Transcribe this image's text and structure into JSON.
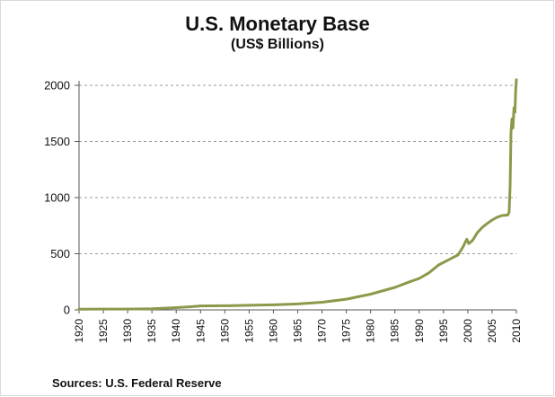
{
  "chart_data": {
    "type": "line",
    "title": "U.S. Monetary Base",
    "subtitle": "(US$ Billions)",
    "source": "Sources: U.S. Federal Reserve",
    "xlim": [
      1920,
      2010
    ],
    "ylim": [
      0,
      2000
    ],
    "x_ticks": [
      "1920",
      "1925",
      "1930",
      "1935",
      "1940",
      "1945",
      "1950",
      "1955",
      "1960",
      "1965",
      "1970",
      "1975",
      "1980",
      "1985",
      "1990",
      "1995",
      "2000",
      "2005",
      "2010"
    ],
    "y_ticks": [
      "0",
      "500",
      "1000",
      "1500",
      "2000"
    ],
    "grid": "horizontal dashed",
    "series": [
      {
        "color": "#8a9a4b",
        "points": [
          [
            1920,
            6
          ],
          [
            1925,
            7
          ],
          [
            1930,
            7
          ],
          [
            1935,
            10
          ],
          [
            1940,
            20
          ],
          [
            1943,
            28
          ],
          [
            1945,
            35
          ],
          [
            1950,
            37
          ],
          [
            1955,
            41
          ],
          [
            1960,
            45
          ],
          [
            1965,
            53
          ],
          [
            1970,
            68
          ],
          [
            1975,
            95
          ],
          [
            1980,
            140
          ],
          [
            1985,
            200
          ],
          [
            1988,
            250
          ],
          [
            1990,
            280
          ],
          [
            1992,
            330
          ],
          [
            1994,
            400
          ],
          [
            1996,
            445
          ],
          [
            1998,
            490
          ],
          [
            1999,
            560
          ],
          [
            1999.8,
            630
          ],
          [
            2000.2,
            590
          ],
          [
            2001,
            620
          ],
          [
            2002,
            690
          ],
          [
            2003,
            735
          ],
          [
            2004,
            770
          ],
          [
            2005,
            800
          ],
          [
            2006,
            825
          ],
          [
            2007,
            840
          ],
          [
            2008.2,
            845
          ],
          [
            2008.5,
            870
          ],
          [
            2008.7,
            1100
          ],
          [
            2008.9,
            1580
          ],
          [
            2009.1,
            1700
          ],
          [
            2009.3,
            1620
          ],
          [
            2009.5,
            1800
          ],
          [
            2009.7,
            1760
          ],
          [
            2009.85,
            1950
          ],
          [
            2010,
            2050
          ]
        ]
      }
    ]
  }
}
